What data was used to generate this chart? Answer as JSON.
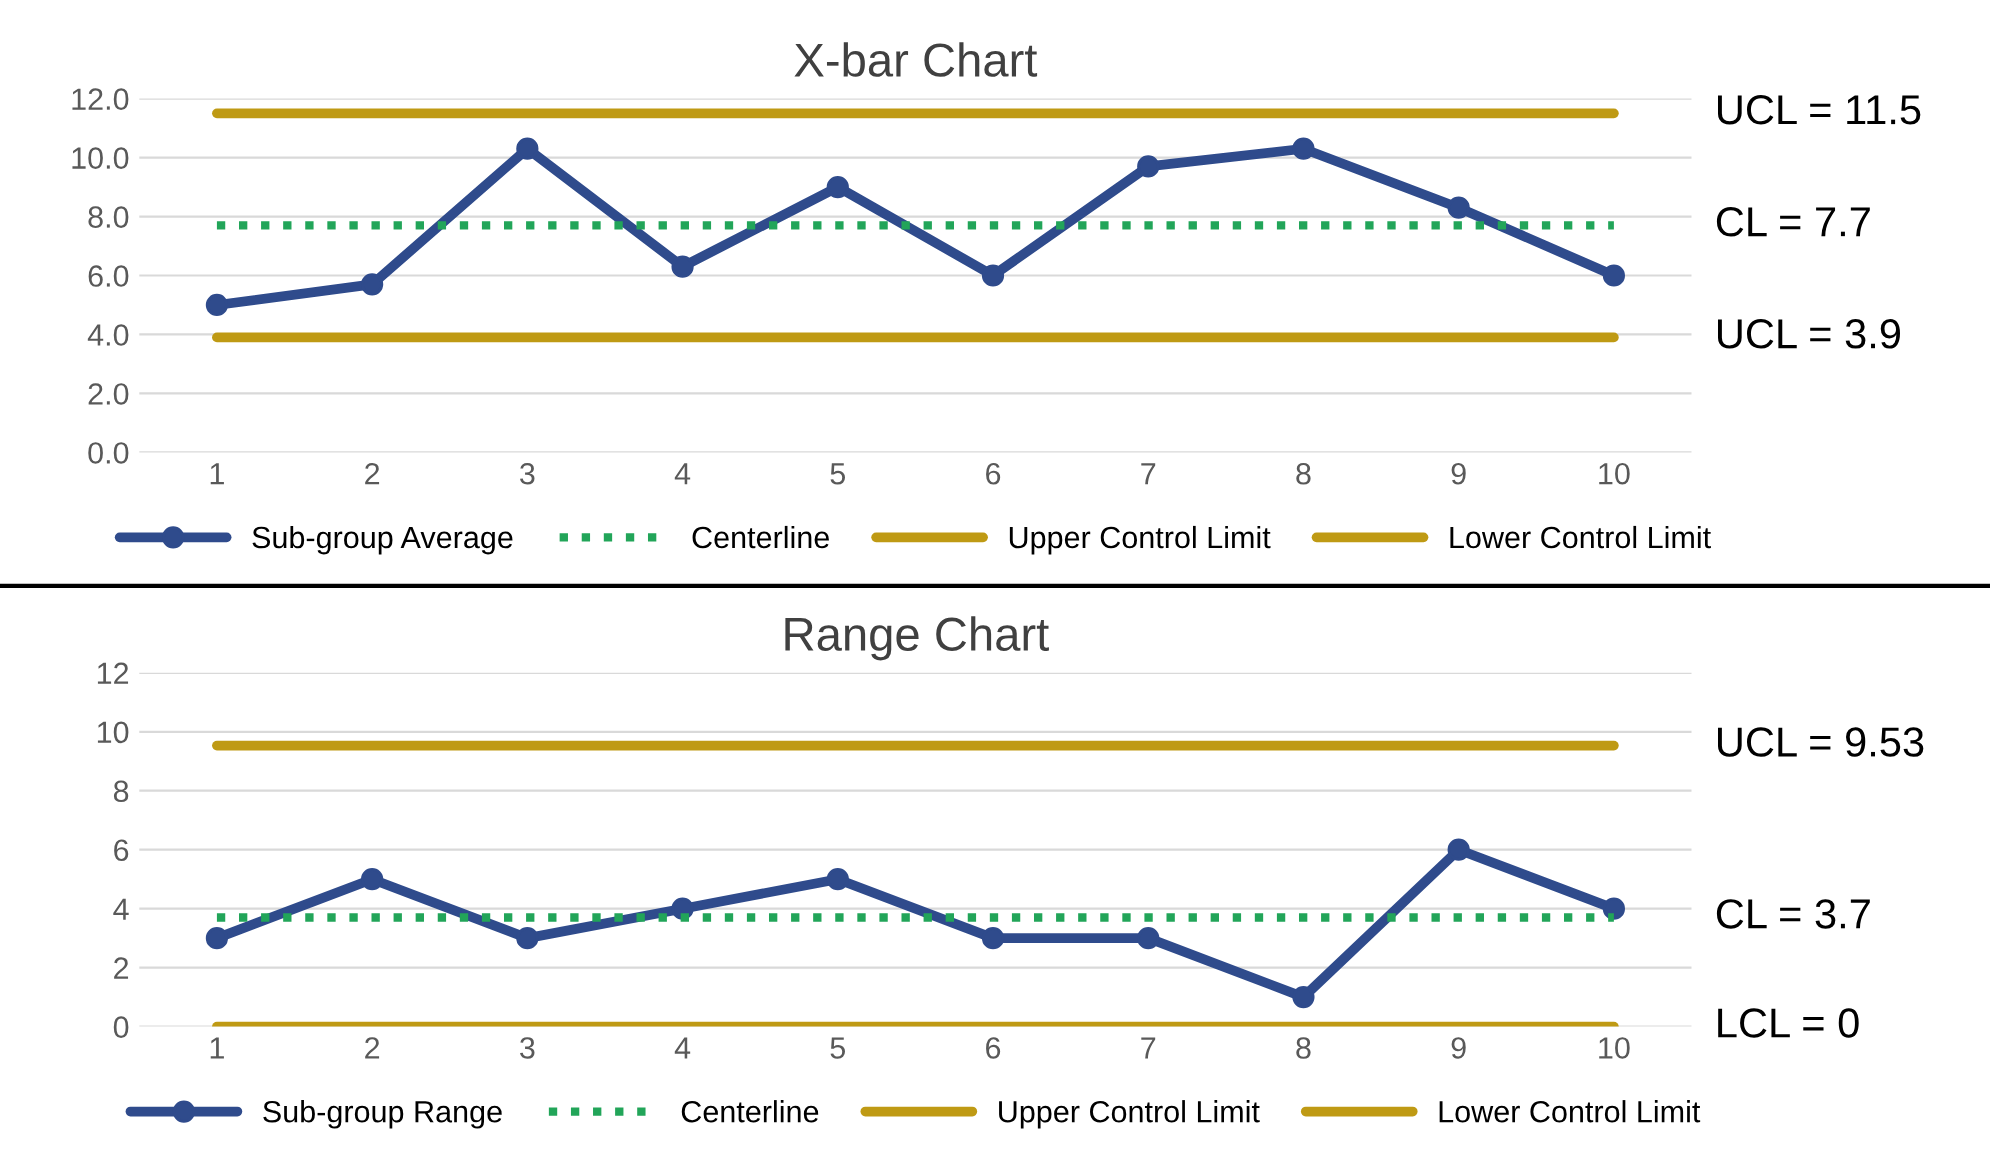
{
  "chart_data": [
    {
      "type": "line",
      "title": "X-bar Chart",
      "categories": [
        "1",
        "2",
        "3",
        "4",
        "5",
        "6",
        "7",
        "8",
        "9",
        "10"
      ],
      "series": [
        {
          "name": "Sub-group Average",
          "color": "#2f4b8c",
          "marker": "circle",
          "line_style": "solid",
          "values": [
            5.0,
            5.7,
            10.3,
            6.3,
            9.0,
            6.0,
            9.7,
            10.3,
            8.3,
            6.0
          ]
        },
        {
          "name": "Centerline",
          "color": "#22a559",
          "marker": "none",
          "line_style": "dotted",
          "values": [
            7.7,
            7.7,
            7.7,
            7.7,
            7.7,
            7.7,
            7.7,
            7.7,
            7.7,
            7.7
          ]
        },
        {
          "name": "Upper Control Limit",
          "color": "#bf9a14",
          "marker": "none",
          "line_style": "solid",
          "values": [
            11.5,
            11.5,
            11.5,
            11.5,
            11.5,
            11.5,
            11.5,
            11.5,
            11.5,
            11.5
          ]
        },
        {
          "name": "Lower Control Limit",
          "color": "#bf9a14",
          "marker": "none",
          "line_style": "solid",
          "values": [
            3.9,
            3.9,
            3.9,
            3.9,
            3.9,
            3.9,
            3.9,
            3.9,
            3.9,
            3.9
          ]
        }
      ],
      "ylim": [
        0,
        12
      ],
      "yticks": [
        {
          "value": 0,
          "label": "0.0"
        },
        {
          "value": 2,
          "label": "2.0"
        },
        {
          "value": 4,
          "label": "4.0"
        },
        {
          "value": 6,
          "label": "6.0"
        },
        {
          "value": 8,
          "label": "8.0"
        },
        {
          "value": 10,
          "label": "10.0"
        },
        {
          "value": 12,
          "label": "12.0"
        }
      ],
      "grid": "y",
      "legend": "bottom",
      "annotations": [
        "UCL = 11.5",
        "CL = 7.7",
        "UCL = 3.9"
      ]
    },
    {
      "type": "line",
      "title": "Range Chart",
      "categories": [
        "1",
        "2",
        "3",
        "4",
        "5",
        "6",
        "7",
        "8",
        "9",
        "10"
      ],
      "series": [
        {
          "name": "Sub-group Range",
          "color": "#2f4b8c",
          "marker": "circle",
          "line_style": "solid",
          "values": [
            3,
            5,
            3,
            4,
            5,
            3,
            3,
            1,
            6,
            4
          ]
        },
        {
          "name": "Centerline",
          "color": "#22a559",
          "marker": "none",
          "line_style": "dotted",
          "values": [
            3.7,
            3.7,
            3.7,
            3.7,
            3.7,
            3.7,
            3.7,
            3.7,
            3.7,
            3.7
          ]
        },
        {
          "name": "Upper Control Limit",
          "color": "#bf9a14",
          "marker": "none",
          "line_style": "solid",
          "values": [
            9.53,
            9.53,
            9.53,
            9.53,
            9.53,
            9.53,
            9.53,
            9.53,
            9.53,
            9.53
          ]
        },
        {
          "name": "Lower Control Limit",
          "color": "#bf9a14",
          "marker": "none",
          "line_style": "solid",
          "values": [
            0,
            0,
            0,
            0,
            0,
            0,
            0,
            0,
            0,
            0
          ]
        }
      ],
      "ylim": [
        0,
        12
      ],
      "yticks": [
        0,
        2,
        4,
        6,
        8,
        10,
        12
      ],
      "grid": "y",
      "legend": "bottom",
      "annotations": [
        "UCL = 9.53",
        "CL = 3.7",
        "LCL = 0"
      ]
    }
  ]
}
